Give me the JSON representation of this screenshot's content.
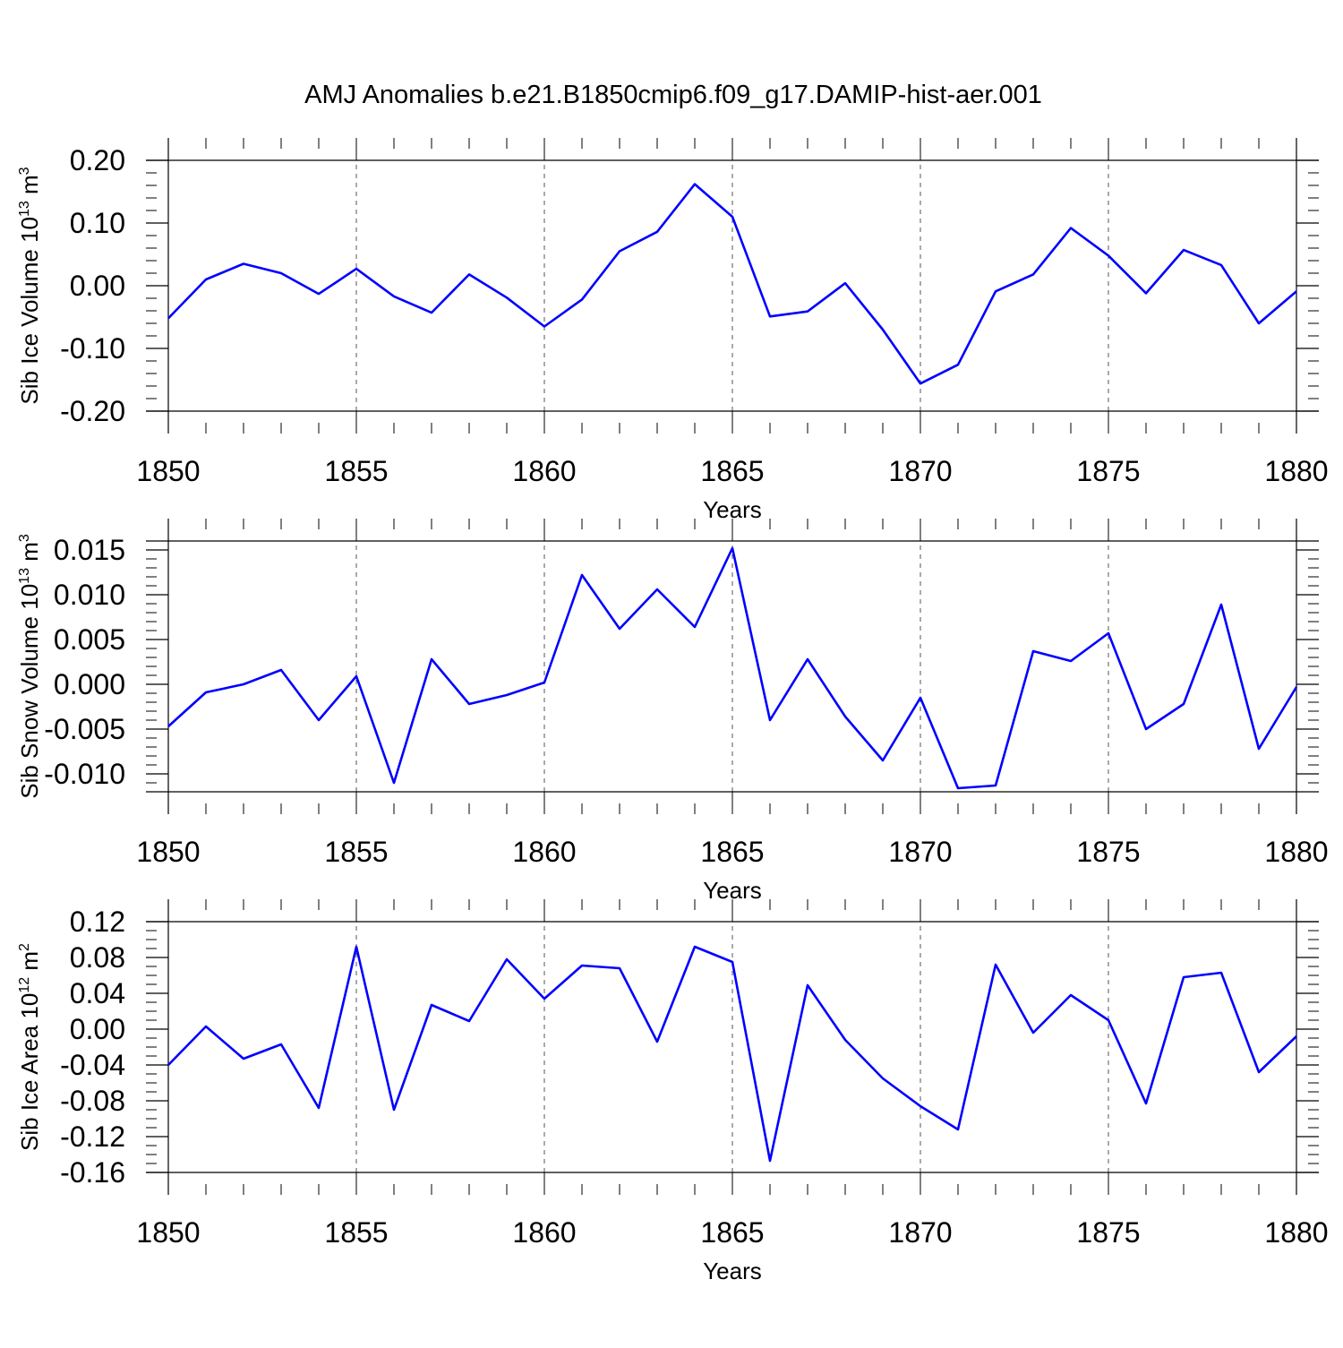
{
  "title": "AMJ Anomalies b.e21.B1850cmip6.f09_g17.DAMIP-hist-aer.001",
  "chart_data": [
    {
      "type": "line",
      "ylabel_main": "Sib Ice Volume 10",
      "ylabel_sup": "13",
      "ylabel_unit": " m",
      "ylabel_unit_sup": "3",
      "xlabel": "Years",
      "xlim": [
        1850,
        1880
      ],
      "ylim": [
        -0.2,
        0.2
      ],
      "grid_x": true,
      "x_ticks": [
        "1850",
        "1855",
        "1860",
        "1865",
        "1870",
        "1875",
        "1880"
      ],
      "y_ticks": [
        {
          "v": 0.2,
          "label": "0.20"
        },
        {
          "v": 0.1,
          "label": "0.10"
        },
        {
          "v": 0.0,
          "label": "0.00"
        },
        {
          "v": -0.1,
          "label": "-0.10"
        },
        {
          "v": -0.2,
          "label": "-0.20"
        }
      ],
      "y_minor_step": 0.02,
      "series": [
        {
          "color": "#0000ff",
          "x": [
            1850,
            1851,
            1852,
            1853,
            1854,
            1855,
            1856,
            1857,
            1858,
            1859,
            1860,
            1861,
            1862,
            1863,
            1864,
            1865,
            1866,
            1867,
            1868,
            1869,
            1870,
            1871,
            1872,
            1873,
            1874,
            1875,
            1876,
            1877,
            1878,
            1879,
            1880
          ],
          "y": [
            -0.052,
            0.01,
            0.035,
            0.02,
            -0.013,
            0.027,
            -0.017,
            -0.043,
            0.018,
            -0.019,
            -0.065,
            -0.022,
            0.055,
            0.086,
            0.162,
            0.11,
            -0.049,
            -0.041,
            0.004,
            -0.07,
            -0.156,
            -0.126,
            -0.009,
            0.018,
            0.092,
            0.048,
            -0.012,
            0.057,
            0.033,
            -0.06,
            -0.009
          ]
        }
      ]
    },
    {
      "type": "line",
      "ylabel_main": "Sib Snow Volume 10",
      "ylabel_sup": "13",
      "ylabel_unit": " m",
      "ylabel_unit_sup": "3",
      "xlabel": "Years",
      "xlim": [
        1850,
        1880
      ],
      "ylim": [
        -0.012,
        0.016
      ],
      "grid_x": true,
      "x_ticks": [
        "1850",
        "1855",
        "1860",
        "1865",
        "1870",
        "1875",
        "1880"
      ],
      "y_ticks": [
        {
          "v": 0.015,
          "label": "0.015"
        },
        {
          "v": 0.01,
          "label": "0.010"
        },
        {
          "v": 0.005,
          "label": "0.005"
        },
        {
          "v": 0.0,
          "label": "0.000"
        },
        {
          "v": -0.005,
          "label": "-0.005"
        },
        {
          "v": -0.01,
          "label": "-0.010"
        }
      ],
      "y_minor_step": 0.001,
      "series": [
        {
          "color": "#0000ff",
          "x": [
            1850,
            1851,
            1852,
            1853,
            1854,
            1855,
            1856,
            1857,
            1858,
            1859,
            1860,
            1861,
            1862,
            1863,
            1864,
            1865,
            1866,
            1867,
            1868,
            1869,
            1870,
            1871,
            1872,
            1873,
            1874,
            1875,
            1876,
            1877,
            1878,
            1879,
            1880
          ],
          "y": [
            -0.0047,
            -0.0009,
            0.0,
            0.0016,
            -0.004,
            0.0009,
            -0.011,
            0.0028,
            -0.0022,
            -0.0012,
            0.0002,
            0.0122,
            0.0062,
            0.0106,
            0.0064,
            0.0152,
            -0.004,
            0.0028,
            -0.0036,
            -0.0085,
            -0.0015,
            -0.0116,
            -0.0113,
            0.0037,
            0.0026,
            0.0057,
            -0.005,
            -0.0022,
            0.0089,
            -0.0072,
            -0.0003
          ]
        }
      ]
    },
    {
      "type": "line",
      "ylabel_main": "Sib Ice Area 10",
      "ylabel_sup": "12",
      "ylabel_unit": " m",
      "ylabel_unit_sup": "2",
      "xlabel": "Years",
      "xlim": [
        1850,
        1880
      ],
      "ylim": [
        -0.16,
        0.12
      ],
      "grid_x": true,
      "x_ticks": [
        "1850",
        "1855",
        "1860",
        "1865",
        "1870",
        "1875",
        "1880"
      ],
      "y_ticks": [
        {
          "v": 0.12,
          "label": "0.12"
        },
        {
          "v": 0.08,
          "label": "0.08"
        },
        {
          "v": 0.04,
          "label": "0.04"
        },
        {
          "v": 0.0,
          "label": "0.00"
        },
        {
          "v": -0.04,
          "label": "-0.04"
        },
        {
          "v": -0.08,
          "label": "-0.08"
        },
        {
          "v": -0.12,
          "label": "-0.12"
        },
        {
          "v": -0.16,
          "label": "-0.16"
        }
      ],
      "y_minor_step": 0.01,
      "series": [
        {
          "color": "#0000ff",
          "x": [
            1850,
            1851,
            1852,
            1853,
            1854,
            1855,
            1856,
            1857,
            1858,
            1859,
            1860,
            1861,
            1862,
            1863,
            1864,
            1865,
            1866,
            1867,
            1868,
            1869,
            1870,
            1871,
            1872,
            1873,
            1874,
            1875,
            1876,
            1877,
            1878,
            1879,
            1880
          ],
          "y": [
            -0.04,
            0.003,
            -0.033,
            -0.017,
            -0.088,
            0.092,
            -0.09,
            0.027,
            0.009,
            0.078,
            0.034,
            0.071,
            0.068,
            -0.014,
            0.092,
            0.075,
            -0.147,
            0.049,
            -0.012,
            -0.055,
            -0.086,
            -0.112,
            0.072,
            -0.004,
            0.038,
            0.01,
            -0.083,
            0.058,
            0.063,
            -0.048,
            -0.008
          ]
        }
      ]
    }
  ]
}
